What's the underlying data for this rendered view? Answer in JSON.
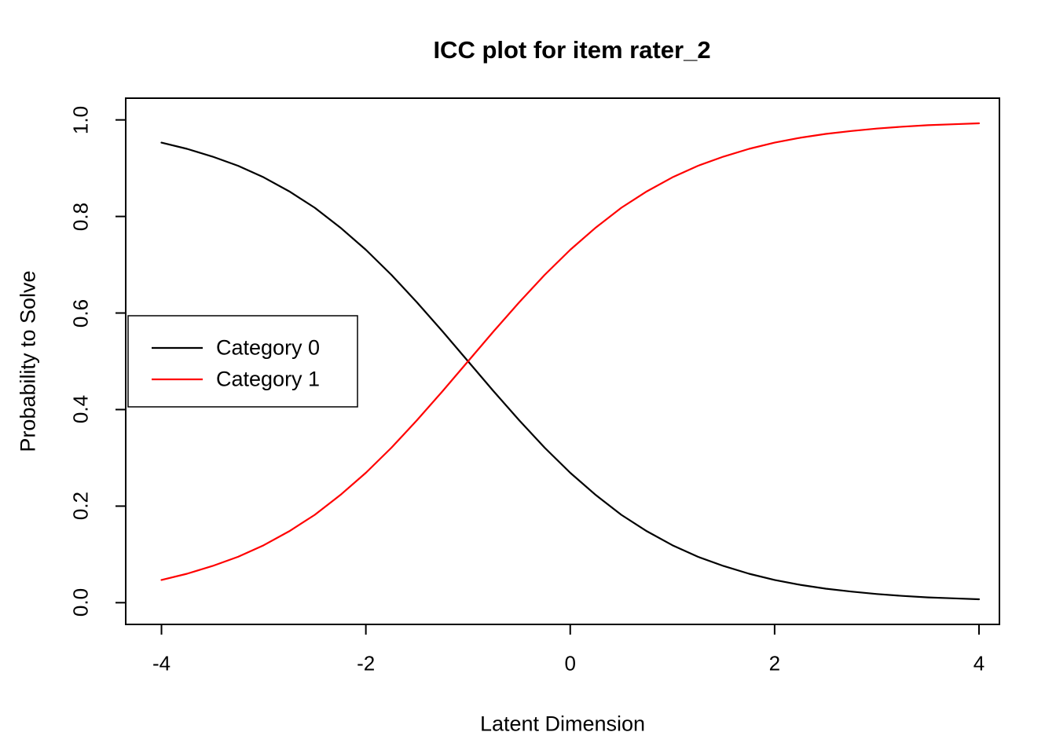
{
  "chart_data": {
    "type": "line",
    "title": "ICC plot for item rater_2",
    "xlabel": "Latent Dimension",
    "ylabel": "Probability to Solve",
    "xlim": [
      -4,
      4
    ],
    "ylim": [
      0,
      1
    ],
    "grid": false,
    "legend_position": "middle-left",
    "xtick_labels": [
      "-4",
      "-2",
      "0",
      "2",
      "4"
    ],
    "xtick_values": [
      -4,
      -2,
      0,
      2,
      4
    ],
    "ytick_labels": [
      "0.0",
      "0.2",
      "0.4",
      "0.6",
      "0.8",
      "1.0"
    ],
    "ytick_values": [
      0,
      0.2,
      0.4,
      0.6,
      0.8,
      1.0
    ],
    "x": [
      -4,
      -3.75,
      -3.5,
      -3.25,
      -3,
      -2.75,
      -2.5,
      -2.25,
      -2,
      -1.75,
      -1.5,
      -1.25,
      -1,
      -0.75,
      -0.5,
      -0.25,
      0,
      0.25,
      0.5,
      0.75,
      1,
      1.25,
      1.5,
      1.75,
      2,
      2.25,
      2.5,
      2.75,
      3,
      3.25,
      3.5,
      3.75,
      4
    ],
    "series": [
      {
        "name": "Category 0",
        "color": "#000000",
        "values": [
          0.953,
          0.94,
          0.924,
          0.905,
          0.881,
          0.852,
          0.818,
          0.777,
          0.731,
          0.679,
          0.622,
          0.562,
          0.5,
          0.438,
          0.378,
          0.321,
          0.269,
          0.223,
          0.182,
          0.148,
          0.119,
          0.095,
          0.076,
          0.06,
          0.047,
          0.037,
          0.029,
          0.023,
          0.018,
          0.014,
          0.011,
          0.009,
          0.007
        ]
      },
      {
        "name": "Category 1",
        "color": "#FF0000",
        "values": [
          0.047,
          0.06,
          0.076,
          0.095,
          0.119,
          0.148,
          0.182,
          0.223,
          0.269,
          0.321,
          0.378,
          0.438,
          0.5,
          0.562,
          0.622,
          0.679,
          0.731,
          0.777,
          0.818,
          0.852,
          0.881,
          0.905,
          0.924,
          0.94,
          0.953,
          0.963,
          0.971,
          0.977,
          0.982,
          0.986,
          0.989,
          0.991,
          0.993
        ]
      }
    ]
  }
}
